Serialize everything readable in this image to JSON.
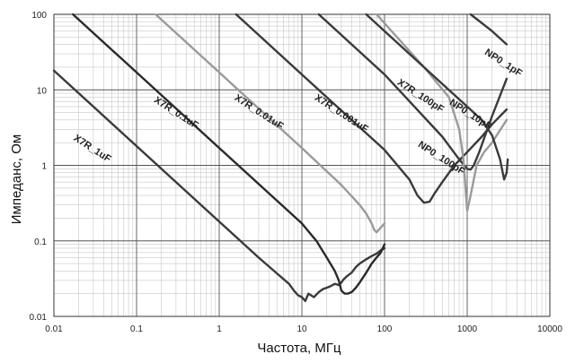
{
  "chart_data": {
    "type": "line",
    "xlabel": "Частота, МГц",
    "ylabel": "Импеданс, Ом",
    "x_scale": "log",
    "y_scale": "log",
    "xlim": [
      0.01,
      10000
    ],
    "ylim": [
      0.01,
      100
    ],
    "x_ticks": [
      "0.01",
      "0.1",
      "1",
      "10",
      "100",
      "1000",
      "10000"
    ],
    "y_ticks": [
      "100",
      "10",
      "1",
      "0.1",
      "0.01"
    ],
    "grid": true,
    "series": [
      {
        "name": "X7R_1uF",
        "color": "#3a3a3a",
        "x": [
          0.01,
          0.1,
          1,
          3,
          5,
          7,
          8,
          9,
          10,
          11,
          12,
          14,
          16,
          18,
          20,
          22,
          25,
          28,
          30,
          32,
          35,
          40,
          45,
          50,
          60,
          70,
          80,
          90,
          100
        ],
        "y": [
          18,
          1.8,
          0.18,
          0.06,
          0.037,
          0.027,
          0.022,
          0.019,
          0.018,
          0.016,
          0.02,
          0.018,
          0.021,
          0.023,
          0.024,
          0.025,
          0.027,
          0.026,
          0.028,
          0.031,
          0.034,
          0.038,
          0.045,
          0.05,
          0.057,
          0.063,
          0.068,
          0.075,
          0.08
        ]
      },
      {
        "name": "X7R_0.1uF",
        "color": "#2a2a2a",
        "x": [
          0.017,
          0.1,
          1,
          10,
          15,
          20,
          25,
          28,
          30,
          33,
          36,
          40,
          45,
          50,
          60,
          70,
          80,
          90,
          100
        ],
        "y": [
          100,
          17,
          1.7,
          0.17,
          0.1,
          0.06,
          0.04,
          0.03,
          0.022,
          0.02,
          0.02,
          0.021,
          0.024,
          0.028,
          0.038,
          0.05,
          0.06,
          0.07,
          0.09
        ]
      },
      {
        "name": "X7R_0.01uF",
        "color": "#9a9a9a",
        "x": [
          0.17,
          1,
          10,
          30,
          50,
          60,
          70,
          75,
          80,
          90,
          100
        ],
        "y": [
          100,
          17,
          1.7,
          0.55,
          0.3,
          0.23,
          0.17,
          0.14,
          0.13,
          0.15,
          0.17
        ]
      },
      {
        "name": "X7R_0.001uF",
        "color": "#3a3a3a",
        "x": [
          1.6,
          10,
          100,
          200,
          250,
          300,
          350,
          400,
          500,
          700,
          1000,
          1500,
          2000,
          3000
        ],
        "y": [
          100,
          16,
          1.6,
          0.65,
          0.4,
          0.32,
          0.33,
          0.42,
          0.6,
          1.0,
          1.5,
          2.4,
          3.5,
          5.5
        ]
      },
      {
        "name": "X7R_100pF",
        "color": "#3a3a3a",
        "x": [
          16,
          100,
          500,
          800,
          1000,
          1100,
          1200,
          1400,
          2000,
          3000
        ],
        "y": [
          100,
          16,
          2.4,
          1.2,
          0.9,
          0.88,
          1.0,
          1.5,
          4.5,
          14
        ]
      },
      {
        "name": "NP0_10pF",
        "color": "#9a9a9a",
        "x": [
          80,
          300,
          600,
          800,
          900,
          1000,
          1100,
          1300,
          1600,
          2000,
          3000
        ],
        "y": [
          100,
          20,
          8,
          3,
          1.2,
          0.25,
          0.4,
          1.0,
          1.5,
          2,
          4
        ]
      },
      {
        "name": "NP0_100pF",
        "color": "#3a3a3a",
        "x": [
          60,
          200,
          500,
          1000,
          1500,
          2000,
          2500,
          2800,
          3000,
          3100
        ],
        "y": [
          100,
          30,
          12,
          6,
          4,
          2.5,
          1.2,
          0.65,
          0.8,
          1.2
        ]
      },
      {
        "name": "NP0_1pF",
        "color": "#3a3a3a",
        "x": [
          1100,
          2000,
          3000
        ],
        "y": [
          100,
          60,
          40
        ]
      }
    ]
  }
}
